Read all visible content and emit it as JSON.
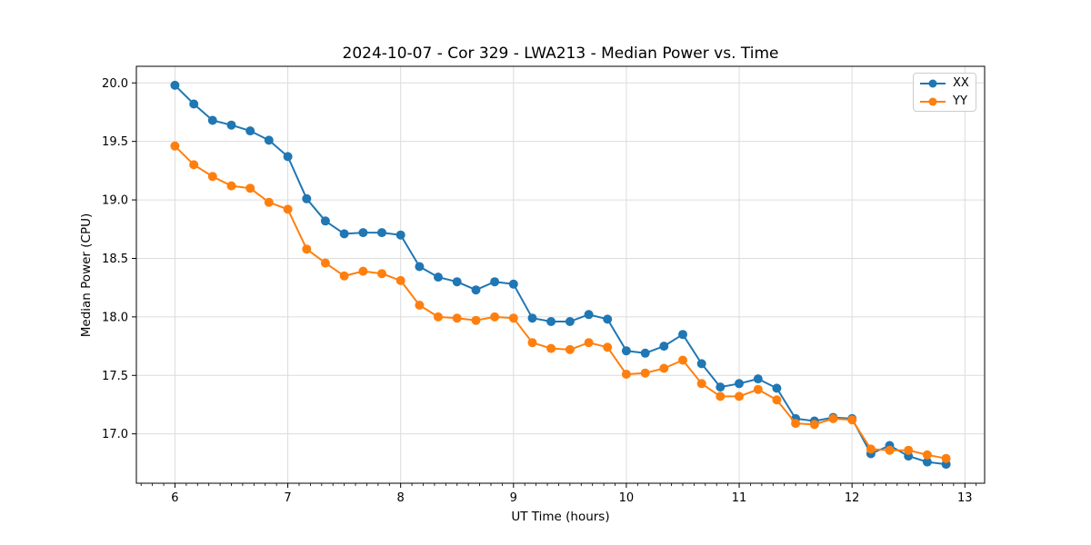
{
  "chart_data": {
    "type": "line",
    "title": "2024-10-07 - Cor 329 - LWA213 - Median Power vs. Time",
    "xlabel": "UT Time (hours)",
    "ylabel": "Median Power (CPU)",
    "xlim": [
      5.658,
      13.175
    ],
    "ylim": [
      16.578,
      20.142
    ],
    "xticks": [
      6,
      7,
      8,
      9,
      10,
      11,
      12,
      13
    ],
    "xtick_labels": [
      "6",
      "7",
      "8",
      "9",
      "10",
      "11",
      "12",
      "13"
    ],
    "x_minor_tick_step": 0.1,
    "yticks": [
      17.0,
      17.5,
      18.0,
      18.5,
      19.0,
      19.5,
      20.0
    ],
    "ytick_labels": [
      "17.0",
      "17.5",
      "18.0",
      "18.5",
      "19.0",
      "19.5",
      "20.0"
    ],
    "grid": true,
    "legend_position": "upper right",
    "marker": "circle",
    "x": [
      6.0,
      6.167,
      6.333,
      6.5,
      6.667,
      6.833,
      7.0,
      7.167,
      7.333,
      7.5,
      7.667,
      7.833,
      8.0,
      8.167,
      8.333,
      8.5,
      8.667,
      8.833,
      9.0,
      9.167,
      9.333,
      9.5,
      9.667,
      9.833,
      10.0,
      10.167,
      10.333,
      10.5,
      10.667,
      10.833,
      11.0,
      11.167,
      11.333,
      11.5,
      11.667,
      11.833,
      12.0,
      12.167,
      12.333,
      12.5,
      12.667,
      12.833
    ],
    "series": [
      {
        "name": "XX",
        "color": "#1f77b4",
        "values": [
          19.98,
          19.82,
          19.68,
          19.64,
          19.59,
          19.51,
          19.37,
          19.01,
          18.82,
          18.71,
          18.72,
          18.72,
          18.7,
          18.43,
          18.34,
          18.3,
          18.23,
          18.3,
          18.28,
          17.99,
          17.96,
          17.96,
          18.02,
          17.98,
          17.71,
          17.69,
          17.75,
          17.85,
          17.6,
          17.4,
          17.43,
          17.47,
          17.39,
          17.13,
          17.11,
          17.14,
          17.13,
          16.83,
          16.9,
          16.81,
          16.76,
          16.74
        ]
      },
      {
        "name": "YY",
        "color": "#ff7f0e",
        "values": [
          19.46,
          19.3,
          19.2,
          19.12,
          19.1,
          18.98,
          18.92,
          18.58,
          18.46,
          18.35,
          18.39,
          18.37,
          18.31,
          18.1,
          18.0,
          17.99,
          17.97,
          18.0,
          17.99,
          17.78,
          17.73,
          17.72,
          17.78,
          17.74,
          17.51,
          17.52,
          17.56,
          17.63,
          17.43,
          17.32,
          17.32,
          17.38,
          17.29,
          17.09,
          17.08,
          17.13,
          17.12,
          16.87,
          16.86,
          16.86,
          16.82,
          16.79
        ]
      }
    ],
    "style": {
      "grid_color": "#dcdcdc",
      "spine_color": "#000000",
      "tick_color": "#000000",
      "background": "#ffffff"
    }
  }
}
